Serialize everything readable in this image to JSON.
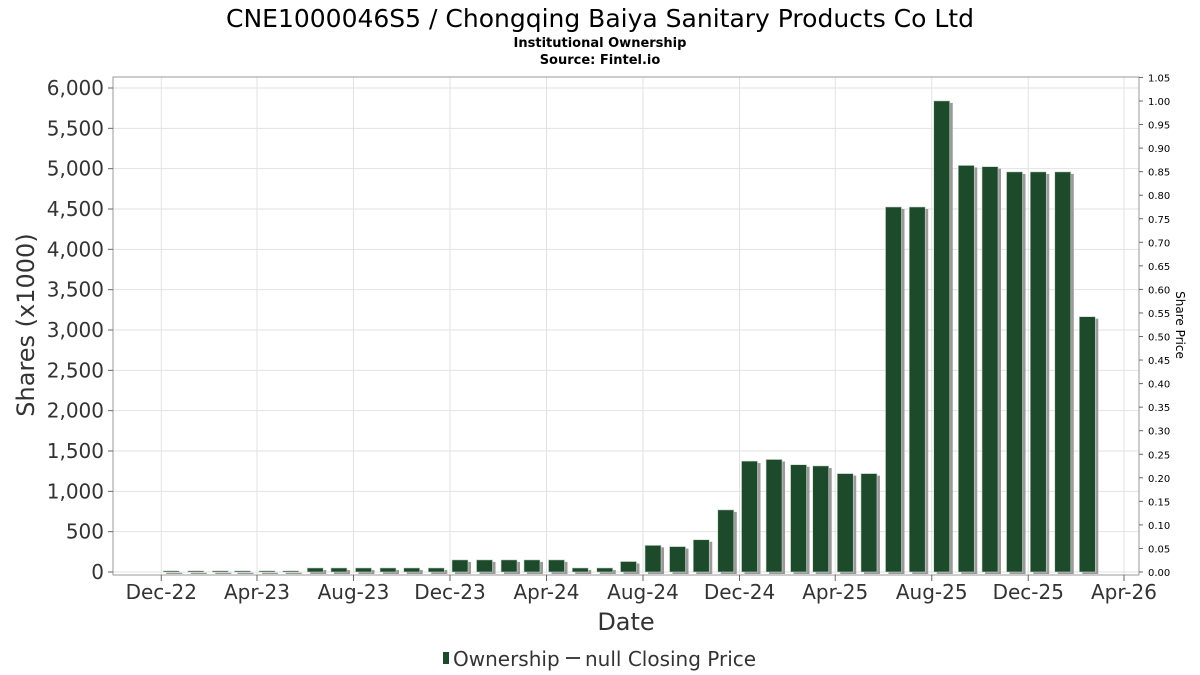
{
  "chart_data": {
    "type": "bar",
    "title": "CNE1000046S5 / Chongqing Baiya Sanitary Products Co Ltd",
    "subtitle": "Institutional Ownership",
    "source": "Source: Fintel.io",
    "xlabel": "Date",
    "ylabel": "Shares (x1000)",
    "y2label": "Share Price",
    "ylim": [
      0,
      6100
    ],
    "y2lim": [
      0,
      1.05
    ],
    "xlim": [
      "2022-10-01",
      "2026-04-20"
    ],
    "grid": true,
    "yticks": [
      0,
      500,
      1000,
      1500,
      2000,
      2500,
      3000,
      3500,
      4000,
      4500,
      5000,
      5500,
      6000
    ],
    "ytick_labels": [
      "0",
      "500",
      "1,000",
      "1,500",
      "2,000",
      "2,500",
      "3,000",
      "3,500",
      "4,000",
      "4,500",
      "5,000",
      "5,500",
      "6,000"
    ],
    "y2ticks": [
      0,
      0.05,
      0.1,
      0.15,
      0.2,
      0.25,
      0.3,
      0.35,
      0.4,
      0.45,
      0.5,
      0.55,
      0.6,
      0.65,
      0.7,
      0.75,
      0.8,
      0.85,
      0.9,
      0.95,
      1.0,
      1.05
    ],
    "y2tick_labels": [
      "0.00",
      "0.05",
      "0.10",
      "0.15",
      "0.20",
      "0.25",
      "0.30",
      "0.35",
      "0.40",
      "0.45",
      "0.50",
      "0.55",
      "0.60",
      "0.65",
      "0.70",
      "0.75",
      "0.80",
      "0.85",
      "0.90",
      "0.95",
      "1.00",
      "1.05"
    ],
    "xticks": [
      "2022-12-01",
      "2023-04-01",
      "2023-08-01",
      "2023-12-01",
      "2024-04-01",
      "2024-08-01",
      "2024-12-01",
      "2025-04-01",
      "2025-08-01",
      "2025-12-01",
      "2026-04-01"
    ],
    "xtick_labels": [
      "Dec-22",
      "Apr-23",
      "Aug-23",
      "Dec-23",
      "Apr-24",
      "Aug-24",
      "Dec-24",
      "Apr-25",
      "Aug-25",
      "Dec-25",
      "Apr-26"
    ],
    "series": [
      {
        "name": "Ownership",
        "color": "#1e4a2c",
        "x": [
          "2022-12-01",
          "2023-01-01",
          "2023-02-01",
          "2023-03-01",
          "2023-04-01",
          "2023-05-01",
          "2023-06-01",
          "2023-07-01",
          "2023-08-01",
          "2023-09-01",
          "2023-10-01",
          "2023-11-01",
          "2023-12-01",
          "2024-01-01",
          "2024-02-01",
          "2024-03-01",
          "2024-04-01",
          "2024-05-01",
          "2024-06-01",
          "2024-07-01",
          "2024-08-01",
          "2024-09-01",
          "2024-10-01",
          "2024-11-01",
          "2024-12-01",
          "2025-01-01",
          "2025-02-01",
          "2025-03-01",
          "2025-04-01",
          "2025-05-01",
          "2025-06-01",
          "2025-07-01",
          "2025-08-01",
          "2025-09-01",
          "2025-10-01",
          "2025-11-01",
          "2025-12-01",
          "2026-01-01",
          "2026-02-01"
        ],
        "values": [
          15,
          15,
          15,
          15,
          15,
          15,
          50,
          50,
          50,
          50,
          50,
          50,
          150,
          150,
          150,
          150,
          150,
          50,
          50,
          130,
          330,
          315,
          400,
          770,
          1375,
          1395,
          1330,
          1315,
          1220,
          1220,
          4525,
          4525,
          5840,
          5040,
          5025,
          4960,
          4960,
          4960,
          3165
        ]
      },
      {
        "name": "null Closing Price",
        "color": "#444444",
        "values": []
      }
    ],
    "legend": "bottom-center"
  }
}
